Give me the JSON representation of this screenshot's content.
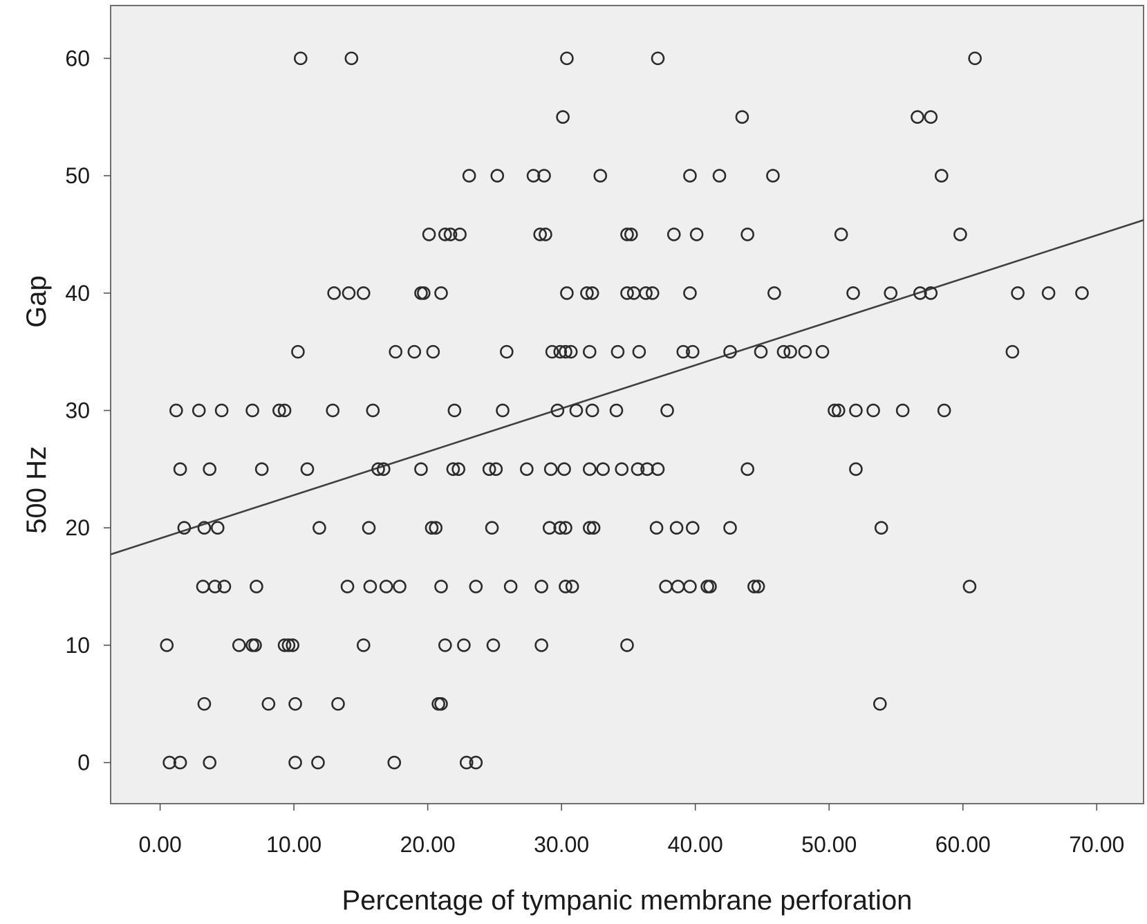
{
  "chart_data": {
    "type": "scatter",
    "title": "",
    "xlabel": "Percentage of tympanic membrane perforation",
    "ylabel_line1": "Gap",
    "ylabel_line2": "500 Hz",
    "xlim": [
      -3.7,
      73.5
    ],
    "ylim": [
      -3.5,
      64.5
    ],
    "x_ticks": [
      0,
      10,
      20,
      30,
      40,
      50,
      60,
      70
    ],
    "x_tick_labels": [
      "0.00",
      "10.00",
      "20.00",
      "30.00",
      "40.00",
      "50.00",
      "60.00",
      "70.00"
    ],
    "y_ticks": [
      0,
      10,
      20,
      30,
      40,
      50,
      60
    ],
    "y_tick_labels": [
      "0",
      "10",
      "20",
      "30",
      "40",
      "50",
      "60"
    ],
    "grid": false,
    "colors": {
      "plot_background": "#efefef",
      "marker": "#2b2b2b",
      "fit_line": "#404040",
      "frame": "#6e6e6e"
    },
    "fit_line": {
      "intercept": 19.1,
      "slope": 0.369
    },
    "points": [
      [
        10.5,
        60
      ],
      [
        14.3,
        60
      ],
      [
        30.4,
        60
      ],
      [
        37.2,
        60
      ],
      [
        60.9,
        60
      ],
      [
        30.1,
        55
      ],
      [
        43.5,
        55
      ],
      [
        56.6,
        55
      ],
      [
        57.6,
        55
      ],
      [
        23.1,
        50
      ],
      [
        25.2,
        50
      ],
      [
        27.9,
        50
      ],
      [
        28.7,
        50
      ],
      [
        32.9,
        50
      ],
      [
        39.6,
        50
      ],
      [
        41.8,
        50
      ],
      [
        45.8,
        50
      ],
      [
        58.4,
        50
      ],
      [
        20.1,
        45
      ],
      [
        21.3,
        45
      ],
      [
        21.7,
        45
      ],
      [
        22.4,
        45
      ],
      [
        28.4,
        45
      ],
      [
        28.8,
        45
      ],
      [
        34.9,
        45
      ],
      [
        35.2,
        45
      ],
      [
        38.4,
        45
      ],
      [
        40.1,
        45
      ],
      [
        43.9,
        45
      ],
      [
        50.9,
        45
      ],
      [
        59.8,
        45
      ],
      [
        13.0,
        40
      ],
      [
        14.1,
        40
      ],
      [
        15.2,
        40
      ],
      [
        19.5,
        40
      ],
      [
        19.7,
        40
      ],
      [
        21.0,
        40
      ],
      [
        30.4,
        40
      ],
      [
        31.9,
        40
      ],
      [
        32.3,
        40
      ],
      [
        34.9,
        40
      ],
      [
        35.4,
        40
      ],
      [
        36.3,
        40
      ],
      [
        36.8,
        40
      ],
      [
        39.6,
        40
      ],
      [
        45.9,
        40
      ],
      [
        51.8,
        40
      ],
      [
        54.6,
        40
      ],
      [
        56.8,
        40
      ],
      [
        57.6,
        40
      ],
      [
        64.1,
        40
      ],
      [
        66.4,
        40
      ],
      [
        68.9,
        40
      ],
      [
        10.3,
        35
      ],
      [
        17.6,
        35
      ],
      [
        19.0,
        35
      ],
      [
        20.4,
        35
      ],
      [
        25.9,
        35
      ],
      [
        29.3,
        35
      ],
      [
        29.9,
        35
      ],
      [
        30.3,
        35
      ],
      [
        30.7,
        35
      ],
      [
        32.1,
        35
      ],
      [
        34.2,
        35
      ],
      [
        35.8,
        35
      ],
      [
        39.1,
        35
      ],
      [
        39.8,
        35
      ],
      [
        42.6,
        35
      ],
      [
        44.9,
        35
      ],
      [
        46.6,
        35
      ],
      [
        47.1,
        35
      ],
      [
        48.2,
        35
      ],
      [
        49.5,
        35
      ],
      [
        63.7,
        35
      ],
      [
        1.2,
        30
      ],
      [
        2.9,
        30
      ],
      [
        4.6,
        30
      ],
      [
        6.9,
        30
      ],
      [
        8.9,
        30
      ],
      [
        9.3,
        30
      ],
      [
        12.9,
        30
      ],
      [
        15.9,
        30
      ],
      [
        22.0,
        30
      ],
      [
        25.6,
        30
      ],
      [
        29.7,
        30
      ],
      [
        31.1,
        30
      ],
      [
        32.3,
        30
      ],
      [
        34.1,
        30
      ],
      [
        37.9,
        30
      ],
      [
        50.4,
        30
      ],
      [
        50.7,
        30
      ],
      [
        52.0,
        30
      ],
      [
        53.3,
        30
      ],
      [
        55.5,
        30
      ],
      [
        58.6,
        30
      ],
      [
        1.5,
        25
      ],
      [
        3.7,
        25
      ],
      [
        7.6,
        25
      ],
      [
        11.0,
        25
      ],
      [
        16.3,
        25
      ],
      [
        16.7,
        25
      ],
      [
        19.5,
        25
      ],
      [
        21.9,
        25
      ],
      [
        22.3,
        25
      ],
      [
        24.6,
        25
      ],
      [
        25.1,
        25
      ],
      [
        27.4,
        25
      ],
      [
        29.2,
        25
      ],
      [
        30.2,
        25
      ],
      [
        32.1,
        25
      ],
      [
        33.1,
        25
      ],
      [
        34.5,
        25
      ],
      [
        35.7,
        25
      ],
      [
        36.4,
        25
      ],
      [
        37.2,
        25
      ],
      [
        43.9,
        25
      ],
      [
        52.0,
        25
      ],
      [
        1.8,
        20
      ],
      [
        3.3,
        20
      ],
      [
        4.3,
        20
      ],
      [
        11.9,
        20
      ],
      [
        15.6,
        20
      ],
      [
        20.3,
        20
      ],
      [
        20.6,
        20
      ],
      [
        24.8,
        20
      ],
      [
        29.1,
        20
      ],
      [
        29.9,
        20
      ],
      [
        30.3,
        20
      ],
      [
        32.1,
        20
      ],
      [
        32.4,
        20
      ],
      [
        37.1,
        20
      ],
      [
        38.6,
        20
      ],
      [
        39.8,
        20
      ],
      [
        42.6,
        20
      ],
      [
        53.9,
        20
      ],
      [
        3.2,
        15
      ],
      [
        4.1,
        15
      ],
      [
        4.8,
        15
      ],
      [
        7.2,
        15
      ],
      [
        14.0,
        15
      ],
      [
        15.7,
        15
      ],
      [
        16.9,
        15
      ],
      [
        17.9,
        15
      ],
      [
        21.0,
        15
      ],
      [
        23.6,
        15
      ],
      [
        26.2,
        15
      ],
      [
        28.5,
        15
      ],
      [
        30.3,
        15
      ],
      [
        30.8,
        15
      ],
      [
        37.8,
        15
      ],
      [
        38.7,
        15
      ],
      [
        39.6,
        15
      ],
      [
        40.9,
        15
      ],
      [
        41.1,
        15
      ],
      [
        44.4,
        15
      ],
      [
        44.7,
        15
      ],
      [
        60.5,
        15
      ],
      [
        0.5,
        10
      ],
      [
        5.9,
        10
      ],
      [
        6.9,
        10
      ],
      [
        7.1,
        10
      ],
      [
        9.3,
        10
      ],
      [
        9.6,
        10
      ],
      [
        9.9,
        10
      ],
      [
        15.2,
        10
      ],
      [
        21.3,
        10
      ],
      [
        22.7,
        10
      ],
      [
        24.9,
        10
      ],
      [
        28.5,
        10
      ],
      [
        34.9,
        10
      ],
      [
        3.3,
        5
      ],
      [
        8.1,
        5
      ],
      [
        10.1,
        5
      ],
      [
        13.3,
        5
      ],
      [
        20.8,
        5
      ],
      [
        21.0,
        5
      ],
      [
        53.8,
        5
      ],
      [
        0.7,
        0
      ],
      [
        1.5,
        0
      ],
      [
        3.7,
        0
      ],
      [
        10.1,
        0
      ],
      [
        11.8,
        0
      ],
      [
        17.5,
        0
      ],
      [
        22.9,
        0
      ],
      [
        23.6,
        0
      ]
    ]
  }
}
